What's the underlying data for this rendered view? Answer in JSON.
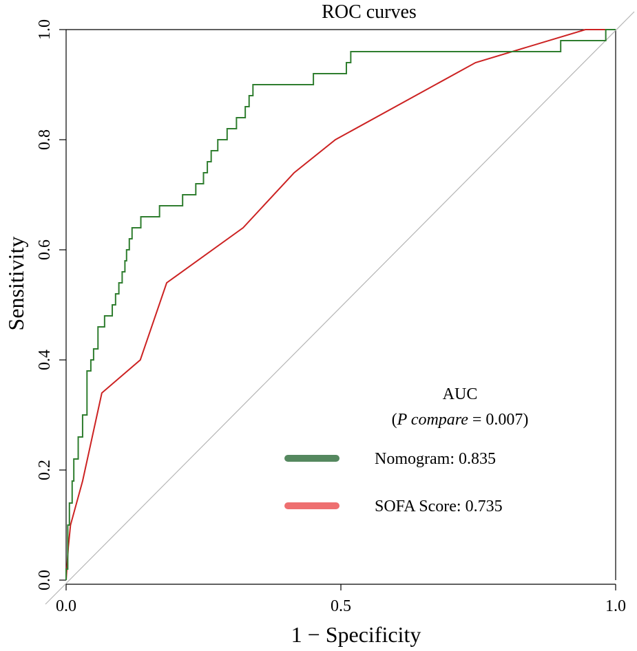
{
  "chart_data": {
    "type": "line",
    "title": "ROC curves",
    "xlabel": "1 − Specificity",
    "ylabel": "Sensitivity",
    "xlim": [
      0,
      1
    ],
    "ylim": [
      0,
      1
    ],
    "x_ticks": [
      "0.0",
      "0.5",
      "1.0"
    ],
    "x_tick_values": [
      0,
      0.5,
      1
    ],
    "y_ticks": [
      "0.0",
      "0.2",
      "0.4",
      "0.6",
      "0.8",
      "1.0"
    ],
    "y_tick_values": [
      0,
      0.2,
      0.4,
      0.6,
      0.8,
      1
    ],
    "reference_line": {
      "x": [
        0,
        1
      ],
      "y": [
        0,
        1
      ],
      "color": "#b5b5b5"
    },
    "legend": {
      "placement": "bottom-right",
      "title": "AUC",
      "subtitle_prefix": "(",
      "subtitle_italic": "P compare",
      "subtitle_suffix": " = 0.007)"
    },
    "series": [
      {
        "name": "Nomogram",
        "label": "Nomogram: 0.835",
        "auc": 0.835,
        "color": "#2e7d2e",
        "legend_color": "#55885f",
        "step": true,
        "points": [
          [
            0,
            0
          ],
          [
            0,
            0.02
          ],
          [
            0.003,
            0.02
          ],
          [
            0.003,
            0.1
          ],
          [
            0.006,
            0.1
          ],
          [
            0.006,
            0.14
          ],
          [
            0.011,
            0.14
          ],
          [
            0.011,
            0.18
          ],
          [
            0.014,
            0.18
          ],
          [
            0.014,
            0.22
          ],
          [
            0.022,
            0.22
          ],
          [
            0.022,
            0.26
          ],
          [
            0.03,
            0.26
          ],
          [
            0.03,
            0.3
          ],
          [
            0.038,
            0.3
          ],
          [
            0.038,
            0.38
          ],
          [
            0.045,
            0.38
          ],
          [
            0.045,
            0.4
          ],
          [
            0.05,
            0.4
          ],
          [
            0.05,
            0.42
          ],
          [
            0.058,
            0.42
          ],
          [
            0.058,
            0.46
          ],
          [
            0.07,
            0.46
          ],
          [
            0.07,
            0.48
          ],
          [
            0.084,
            0.48
          ],
          [
            0.084,
            0.5
          ],
          [
            0.09,
            0.5
          ],
          [
            0.09,
            0.52
          ],
          [
            0.096,
            0.52
          ],
          [
            0.096,
            0.54
          ],
          [
            0.102,
            0.54
          ],
          [
            0.102,
            0.56
          ],
          [
            0.107,
            0.56
          ],
          [
            0.107,
            0.58
          ],
          [
            0.11,
            0.58
          ],
          [
            0.11,
            0.6
          ],
          [
            0.115,
            0.6
          ],
          [
            0.115,
            0.62
          ],
          [
            0.12,
            0.62
          ],
          [
            0.12,
            0.64
          ],
          [
            0.136,
            0.64
          ],
          [
            0.136,
            0.66
          ],
          [
            0.17,
            0.66
          ],
          [
            0.17,
            0.68
          ],
          [
            0.212,
            0.68
          ],
          [
            0.212,
            0.7
          ],
          [
            0.236,
            0.7
          ],
          [
            0.236,
            0.72
          ],
          [
            0.25,
            0.72
          ],
          [
            0.25,
            0.74
          ],
          [
            0.257,
            0.74
          ],
          [
            0.257,
            0.76
          ],
          [
            0.264,
            0.76
          ],
          [
            0.264,
            0.78
          ],
          [
            0.276,
            0.78
          ],
          [
            0.276,
            0.8
          ],
          [
            0.293,
            0.8
          ],
          [
            0.293,
            0.82
          ],
          [
            0.31,
            0.82
          ],
          [
            0.31,
            0.84
          ],
          [
            0.326,
            0.84
          ],
          [
            0.326,
            0.86
          ],
          [
            0.333,
            0.86
          ],
          [
            0.333,
            0.88
          ],
          [
            0.34,
            0.88
          ],
          [
            0.34,
            0.9
          ],
          [
            0.45,
            0.9
          ],
          [
            0.45,
            0.92
          ],
          [
            0.51,
            0.92
          ],
          [
            0.51,
            0.94
          ],
          [
            0.518,
            0.94
          ],
          [
            0.518,
            0.96
          ],
          [
            0.9,
            0.96
          ],
          [
            0.9,
            0.98
          ],
          [
            0.982,
            0.98
          ],
          [
            0.982,
            1.0
          ],
          [
            1.0,
            1.0
          ]
        ]
      },
      {
        "name": "SOFA Score",
        "label": "SOFA Score: 0.735",
        "auc": 0.735,
        "color": "#cc2222",
        "legend_color": "#ee6f70",
        "step": false,
        "points": [
          [
            0,
            0
          ],
          [
            0.004,
            0.06
          ],
          [
            0.008,
            0.1
          ],
          [
            0.03,
            0.18
          ],
          [
            0.065,
            0.34
          ],
          [
            0.135,
            0.4
          ],
          [
            0.183,
            0.54
          ],
          [
            0.322,
            0.64
          ],
          [
            0.415,
            0.74
          ],
          [
            0.49,
            0.8
          ],
          [
            0.745,
            0.94
          ],
          [
            0.945,
            1.0
          ],
          [
            1.0,
            1.0
          ]
        ]
      }
    ]
  }
}
